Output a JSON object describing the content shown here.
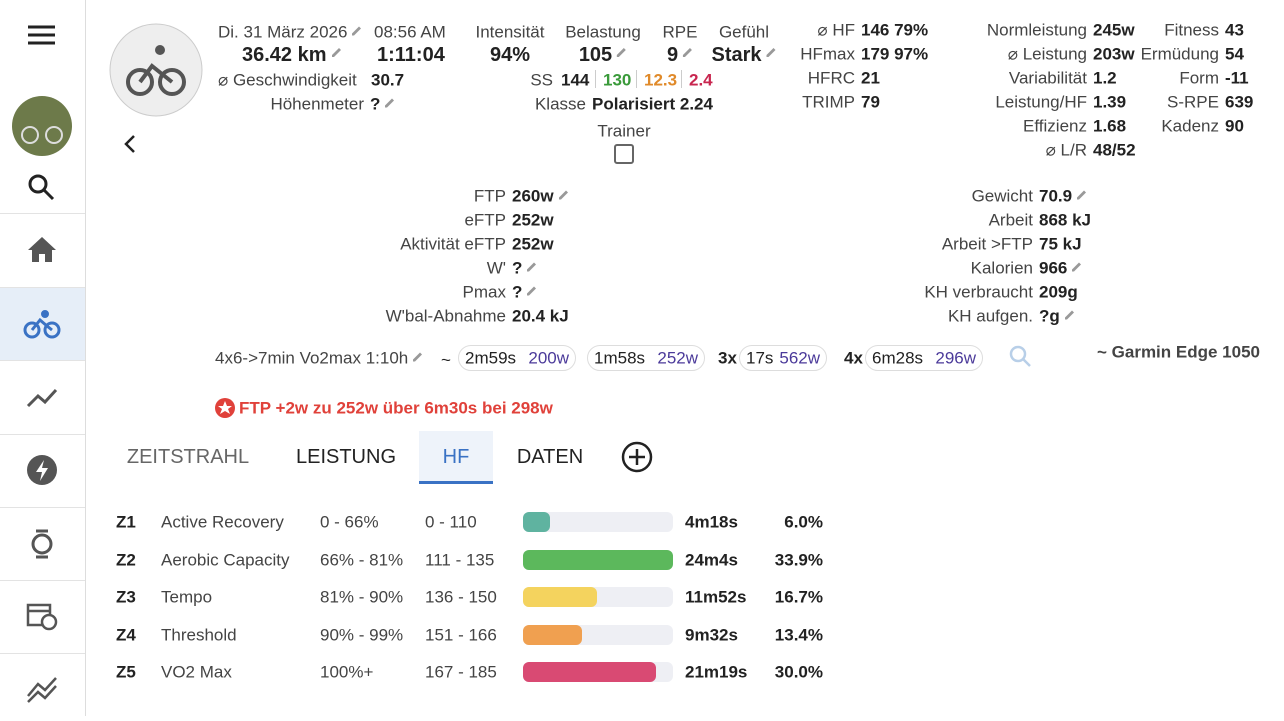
{
  "header": {
    "date": "Di. 31 März 2026",
    "time": "08:56 AM",
    "distance": "36.42 km",
    "duration": "1:11:04",
    "speed_label": "⌀ Geschwindigkeit",
    "speed": "30.7",
    "elevation_label": "Höhenmeter",
    "elevation": "?",
    "trainer_label": "Trainer"
  },
  "summary": [
    {
      "label": "Intensität",
      "value": "94%"
    },
    {
      "label": "Belastung",
      "value": "105"
    },
    {
      "label": "RPE",
      "value": "9"
    },
    {
      "label": "Gefühl",
      "value": "Stark"
    }
  ],
  "ss": {
    "label": "SS",
    "values": [
      "144",
      "130",
      "12.3",
      "2.4"
    ],
    "colors": [
      "#222222",
      "#3a9a3a",
      "#e08a2a",
      "#c8264f"
    ],
    "class_label": "Klasse",
    "class_value": "Polarisiert 2.24"
  },
  "stats": {
    "hr": [
      {
        "label": "⌀ HF",
        "value": "146 79%"
      },
      {
        "label": "HFmax",
        "value": "179 97%"
      },
      {
        "label": "HFRC",
        "value": "21"
      },
      {
        "label": "TRIMP",
        "value": "79"
      }
    ],
    "power": [
      {
        "label": "Normleistung",
        "value": "245w"
      },
      {
        "label": "⌀ Leistung",
        "value": "203w"
      },
      {
        "label": "Variabilität",
        "value": "1.2"
      },
      {
        "label": "Leistung/HF",
        "value": "1.39"
      },
      {
        "label": "Effizienz",
        "value": "1.68"
      },
      {
        "label": "⌀ L/R",
        "value": "48/52"
      }
    ],
    "fitness": [
      {
        "label": "Fitness",
        "value": "43"
      },
      {
        "label": "Ermüdung",
        "value": "54"
      },
      {
        "label": "Form",
        "value": "-11"
      },
      {
        "label": "S-RPE",
        "value": "639"
      },
      {
        "label": "Kadenz",
        "value": "90"
      }
    ],
    "ftp": [
      {
        "label": "FTP",
        "value": "260w"
      },
      {
        "label": "eFTP",
        "value": "252w"
      },
      {
        "label": "Aktivität eFTP",
        "value": "252w"
      },
      {
        "label": "W'",
        "value": "?"
      },
      {
        "label": "Pmax",
        "value": "?"
      },
      {
        "label": "W'bal-Abnahme",
        "value": "20.4 kJ"
      }
    ],
    "body": [
      {
        "label": "Gewicht",
        "value": "70.9"
      },
      {
        "label": "Arbeit",
        "value": "868 kJ"
      },
      {
        "label": "Arbeit >FTP",
        "value": "75 kJ"
      },
      {
        "label": "Kalorien",
        "value": "966"
      },
      {
        "label": "KH verbraucht",
        "value": "209g"
      },
      {
        "label": "KH aufgen.",
        "value": "?g"
      }
    ]
  },
  "intervals": {
    "description": "4x6->7min Vo2max 1:10h",
    "separator": "~",
    "efforts": [
      {
        "time": "2m59s",
        "watts": "200w"
      },
      {
        "time": "1m58s",
        "watts": "252w"
      },
      {
        "count": "3x",
        "time": "17s",
        "watts": "562w"
      },
      {
        "count": "4x",
        "time": "6m28s",
        "watts": "296w"
      }
    ],
    "device": "~ Garmin Edge 1050"
  },
  "alert": "FTP +2w zu 252w über 6m30s bei 298w",
  "tabs": {
    "items": [
      "ZEITSTRAHL",
      "LEISTUNG",
      "HF",
      "DATEN"
    ],
    "active": 2
  },
  "zones": {
    "rows": [
      {
        "id": "Z1",
        "name": "Active Recovery",
        "pct_range": "0 - 66%",
        "hr_range": "0 - 110",
        "time": "4m18s",
        "percent": {
          "value": 6.0,
          "label": "6.0%"
        },
        "color": "#5fb3a0"
      },
      {
        "id": "Z2",
        "name": "Aerobic Capacity",
        "pct_range": "66% - 81%",
        "hr_range": "111 - 135",
        "time": "24m4s",
        "percent": {
          "value": 33.9,
          "label": "33.9%"
        },
        "color": "#5cb85c"
      },
      {
        "id": "Z3",
        "name": "Tempo",
        "pct_range": "81% - 90%",
        "hr_range": "136 - 150",
        "time": "11m52s",
        "percent": {
          "value": 16.7,
          "label": "16.7%"
        },
        "color": "#f4d35e"
      },
      {
        "id": "Z4",
        "name": "Threshold",
        "pct_range": "90% - 99%",
        "hr_range": "151 - 166",
        "time": "9m32s",
        "percent": {
          "value": 13.4,
          "label": "13.4%"
        },
        "color": "#f0a050"
      },
      {
        "id": "Z5",
        "name": "VO2 Max",
        "pct_range": "100%+",
        "hr_range": "167 - 185",
        "time": "21m19s",
        "percent": {
          "value": 30.0,
          "label": "30.0%"
        },
        "color": "#d94a73"
      }
    ]
  }
}
